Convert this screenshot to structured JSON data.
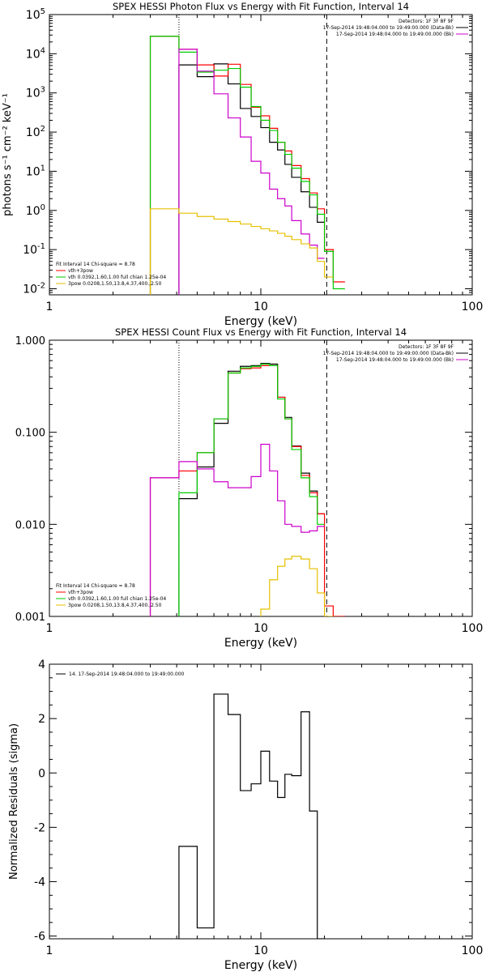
{
  "chart_data": [
    {
      "type": "line",
      "title": "SPEX HESSI Photon Flux vs Energy with Fit Function, Interval 14",
      "xlabel": "Energy (keV)",
      "ylabel": "photons s⁻¹ cm⁻² keV⁻¹",
      "xscale": "log",
      "yscale": "log",
      "xlim": [
        1,
        100
      ],
      "ylim": [
        0.007,
        100000
      ],
      "xticks": [
        {
          "v": 1,
          "label": "1"
        },
        {
          "v": 10,
          "label": "10"
        },
        {
          "v": 100,
          "label": "100"
        }
      ],
      "yticks_sup": [
        {
          "v": 0.01,
          "exp": "-2"
        },
        {
          "v": 0.1,
          "exp": "-1"
        },
        {
          "v": 1,
          "exp": "0"
        },
        {
          "v": 10,
          "exp": "1"
        },
        {
          "v": 100,
          "exp": "2"
        },
        {
          "v": 1000,
          "exp": "3"
        },
        {
          "v": 10000,
          "exp": "4"
        },
        {
          "v": 100000,
          "exp": "5"
        }
      ],
      "tick_base": "10",
      "legend_top": {
        "position": "top-right",
        "lines": [
          {
            "text": "Detectors: 1F 3F 8F 9F",
            "color": null
          },
          {
            "text": "17-Sep-2014 19:48:04.000 to 19:49:00.000 (Data-Bk)",
            "color": "#000000"
          },
          {
            "text": "17-Sep-2014 19:48:04.000 to 19:49:00.000 (Bk)",
            "color": "#cc00cc"
          }
        ]
      },
      "legend_bottom": {
        "position": "bottom-left",
        "title": "Fit Interval 14   Chi-square = 8.78",
        "lines": [
          {
            "text": "vth+3pow",
            "color": "#ff0000"
          },
          {
            "text": "vth 0.0392,1.60,1.00  full chian 1.25e-04",
            "color": "#00cc00"
          },
          {
            "text": "3pow 0.0208,1.50,13.8,4.37,400.,2.50",
            "color": "#e6c000"
          }
        ]
      },
      "vlines": [
        {
          "x": 4.1,
          "style": "dotted"
        },
        {
          "x": 20.5,
          "style": "dashed"
        }
      ],
      "series": [
        {
          "name": "17-Sep-2014 19:48:04.000 to 19:49:00.000 (Data-Bk)",
          "color": "#000000",
          "edges": [
            4.1,
            5.0,
            6.0,
            7.0,
            8.0,
            9.0,
            10.0,
            11.0,
            12.0,
            13.0,
            14.0,
            15.5,
            17.0,
            18.5,
            20.0
          ],
          "values": [
            5200,
            2600,
            5500,
            1700,
            400,
            250,
            130,
            55,
            35,
            15,
            7,
            3,
            1.2,
            0.5
          ]
        },
        {
          "name": "vth+3pow",
          "color": "#ff0000",
          "edges": [
            3.0,
            4.1,
            5.0,
            6.0,
            7.0,
            8.0,
            9.0,
            10.0,
            11.0,
            12.0,
            13.0,
            14.0,
            15.5,
            17.0,
            18.5,
            20.0,
            22.0,
            25.0
          ],
          "values": [
            28000,
            13000,
            5200,
            2700,
            5400,
            1650,
            430,
            260,
            125,
            55,
            33,
            14,
            6.5,
            2.8,
            1.1,
            0.1,
            0.015
          ]
        },
        {
          "name": "vth 0.0392,1.60,1.00  full chian 1.25e-04",
          "color": "#00cc00",
          "edges": [
            3.0,
            4.1,
            5.0,
            6.0,
            7.0,
            8.0,
            9.0,
            10.0,
            11.0,
            12.0,
            13.0,
            14.0,
            15.5,
            17.0,
            18.5,
            20.0,
            22.0,
            25.0
          ],
          "values": [
            28000,
            11000,
            3400,
            3800,
            4200,
            1400,
            450,
            200,
            110,
            55,
            27,
            12,
            5.5,
            2.5,
            0.8,
            0.09,
            0.01
          ]
        },
        {
          "name": "(Bk)",
          "color": "#cc00cc",
          "edges": [
            4.1,
            5.0,
            6.0,
            7.0,
            8.0,
            9.0,
            10.0,
            11.0,
            12.0,
            13.0,
            14.0,
            15.5,
            17.0,
            18.5,
            20.0
          ],
          "values": [
            13000,
            3600,
            950,
            230,
            75,
            18,
            9,
            3.5,
            2,
            1.3,
            0.55,
            0.25,
            0.13,
            0.06
          ]
        },
        {
          "name": "3pow 0.0208,1.50,13.8,4.37,400.,2.50",
          "color": "#e6c000",
          "edges": [
            3.0,
            4.1,
            5.0,
            6.0,
            7.0,
            8.0,
            9.0,
            10.0,
            11.0,
            12.0,
            13.0,
            14.0,
            15.5,
            17.0,
            18.5,
            20.0,
            22.0
          ],
          "values": [
            1.1,
            0.85,
            0.7,
            0.6,
            0.52,
            0.45,
            0.39,
            0.34,
            0.3,
            0.26,
            0.22,
            0.18,
            0.14,
            0.11,
            0.05,
            0.02
          ]
        }
      ]
    },
    {
      "type": "line",
      "title": "SPEX HESSI Count Flux vs Energy with Fit Function, Interval 14",
      "xlabel": "Energy (keV)",
      "ylabel": "",
      "xscale": "log",
      "yscale": "log",
      "xlim": [
        1,
        100
      ],
      "ylim": [
        0.001,
        1.0
      ],
      "xticks": [
        {
          "v": 1,
          "label": "1"
        },
        {
          "v": 10,
          "label": "10"
        },
        {
          "v": 100,
          "label": "100"
        }
      ],
      "yticks": [
        {
          "v": 0.001,
          "label": "0.001"
        },
        {
          "v": 0.01,
          "label": "0.010"
        },
        {
          "v": 0.1,
          "label": "0.100"
        },
        {
          "v": 1,
          "label": "1.000"
        }
      ],
      "legend_top": {
        "position": "top-right",
        "lines": [
          {
            "text": "Detectors: 1F 3F 8F 9F",
            "color": null
          },
          {
            "text": "17-Sep-2014 19:48:04.000 to 19:49:00.000 (Data-Bk)",
            "color": "#000000"
          },
          {
            "text": "17-Sep-2014 19:48:04.000 to 19:49:00.000 (Bk)",
            "color": "#cc00cc"
          }
        ]
      },
      "legend_bottom": {
        "position": "bottom-left",
        "title": "Fit Interval 14   Chi-square = 8.78",
        "lines": [
          {
            "text": "vth+3pow",
            "color": "#ff0000"
          },
          {
            "text": "vth 0.0392,1.60,1.00  full chian 1.25e-04",
            "color": "#00cc00"
          },
          {
            "text": "3pow 0.0208,1.50,13.8,4.37,400.,2.50",
            "color": "#e6c000"
          }
        ]
      },
      "vlines": [
        {
          "x": 4.1,
          "style": "dotted"
        },
        {
          "x": 20.5,
          "style": "dashed"
        }
      ],
      "series": [
        {
          "name": "17-Sep-2014 19:48:04.000 to 19:49:00.000 (Data-Bk)",
          "color": "#000000",
          "edges": [
            4.1,
            5.0,
            6.0,
            7.0,
            8.0,
            9.0,
            10.0,
            11.0,
            12.0,
            13.0,
            14.0,
            15.5,
            17.0,
            18.5,
            20.0
          ],
          "values": [
            0.019,
            0.042,
            0.125,
            0.46,
            0.52,
            0.53,
            0.56,
            0.55,
            0.24,
            0.145,
            0.071,
            0.036,
            0.023,
            0.013
          ]
        },
        {
          "name": "vth+3pow",
          "color": "#ff0000",
          "edges": [
            3.0,
            4.1,
            5.0,
            6.0,
            7.0,
            8.0,
            9.0,
            10.0,
            11.0,
            12.0,
            13.0,
            14.0,
            15.5,
            17.0,
            18.5,
            20.0,
            22.0,
            25.0
          ],
          "values": [
            0.032,
            0.038,
            0.06,
            0.14,
            0.44,
            0.49,
            0.5,
            0.53,
            0.53,
            0.24,
            0.14,
            0.07,
            0.034,
            0.022,
            0.013,
            0.0013,
            0.001
          ]
        },
        {
          "name": "vth 0.0392,1.60,1.00  full chian 1.25e-04",
          "color": "#00cc00",
          "edges": [
            4.1,
            5.0,
            6.0,
            7.0,
            8.0,
            9.0,
            10.0,
            11.0,
            12.0,
            13.0,
            14.0,
            15.5,
            17.0,
            18.5,
            20.0
          ],
          "values": [
            0.022,
            0.06,
            0.14,
            0.44,
            0.5,
            0.52,
            0.55,
            0.53,
            0.23,
            0.14,
            0.065,
            0.032,
            0.02,
            0.01
          ]
        },
        {
          "name": "(Bk)",
          "color": "#cc00cc",
          "edges": [
            3.0,
            4.1,
            5.0,
            6.0,
            7.0,
            8.0,
            9.0,
            10.0,
            11.0,
            12.0,
            13.0,
            14.0,
            15.5,
            17.0,
            18.5,
            20.0
          ],
          "values": [
            0.032,
            0.048,
            0.04,
            0.029,
            0.025,
            0.025,
            0.033,
            0.074,
            0.038,
            0.018,
            0.01,
            0.0095,
            0.0082,
            0.0085,
            0.0095
          ]
        },
        {
          "name": "3pow 0.0208,1.50,13.8,4.37,400.,2.50",
          "color": "#e6c000",
          "edges": [
            10.0,
            11.0,
            12.0,
            13.0,
            14.0,
            15.5,
            17.0,
            18.5,
            20.0,
            22.0
          ],
          "values": [
            0.0012,
            0.0025,
            0.0035,
            0.0042,
            0.0045,
            0.0042,
            0.0033,
            0.0018,
            0.001
          ]
        }
      ]
    },
    {
      "type": "line",
      "title": "",
      "xlabel": "Energy (keV)",
      "ylabel": "Normalized Residuals (sigma)",
      "xscale": "log",
      "yscale": "linear",
      "xlim": [
        1,
        100
      ],
      "ylim": [
        -6.1,
        4
      ],
      "xticks": [
        {
          "v": 1,
          "label": "1"
        },
        {
          "v": 10,
          "label": "10"
        },
        {
          "v": 100,
          "label": "100"
        }
      ],
      "yticks": [
        {
          "v": -6,
          "label": "-6"
        },
        {
          "v": -4,
          "label": "-4"
        },
        {
          "v": -2,
          "label": "-2"
        },
        {
          "v": 0,
          "label": "0"
        },
        {
          "v": 2,
          "label": "2"
        },
        {
          "v": 4,
          "label": "4"
        }
      ],
      "legend_top": {
        "position": "top-left",
        "lines": [
          {
            "text": "14. 17-Sep-2014 19:48:04.000 to 19:49:00.000",
            "color": "#000000"
          }
        ]
      },
      "vlines": [],
      "series": [
        {
          "name": "14. 17-Sep-2014 19:48:04.000 to 19:49:00.000",
          "color": "#000000",
          "edges": [
            4.1,
            5.0,
            6.0,
            7.0,
            8.0,
            9.0,
            10.0,
            11.0,
            12.0,
            13.0,
            14.0,
            15.5,
            17.0,
            18.5,
            20.0
          ],
          "values": [
            -2.7,
            -5.7,
            2.9,
            2.15,
            -0.65,
            -0.4,
            0.8,
            -0.3,
            -0.9,
            -0.05,
            -0.1,
            2.25,
            -1.4,
            -6.1
          ]
        }
      ]
    }
  ]
}
